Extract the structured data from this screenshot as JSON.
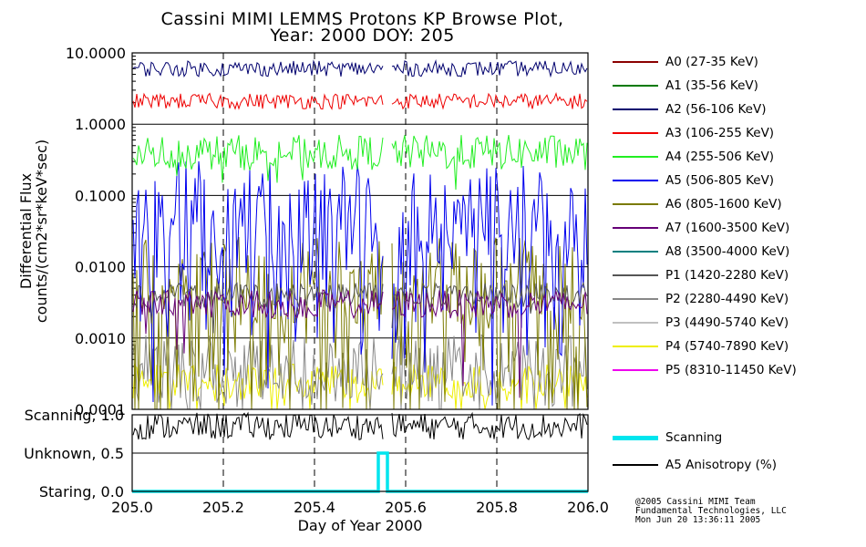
{
  "title_line1": "Cassini MIMI LEMMS Protons KP Browse Plot,",
  "title_line2": "Year: 2000 DOY: 205",
  "footer": {
    "line1": "@2005 Cassini MIMI Team",
    "line2": "Fundamental Technologies, LLC",
    "line3": "Mon Jun 20 13:36:11 2005"
  },
  "chart_data": [
    {
      "type": "line",
      "panel": "flux",
      "ylabel_line1": "Differential Flux",
      "ylabel_line2": "counts/(cm2*sr*keV*sec)",
      "yscale": "log",
      "ylim": [
        0.0001,
        10.0
      ],
      "yticks": [
        "10.0000",
        "1.0000",
        "0.1000",
        "0.0100",
        "0.0010",
        "0.0001"
      ],
      "xlim": [
        205.0,
        206.0
      ],
      "data_gap": [
        205.55,
        205.57
      ],
      "grid": true,
      "legend_position": "right",
      "series": [
        {
          "name": "A0 (27-35 KeV)",
          "color": "#8b0000",
          "level": null
        },
        {
          "name": "A1 (35-56 KeV)",
          "color": "#007a00",
          "level": null
        },
        {
          "name": "A2 (56-106 KeV)",
          "color": "#00006e",
          "level": 6.0
        },
        {
          "name": "A3 (106-255 KeV)",
          "color": "#ee0000",
          "level": 2.1
        },
        {
          "name": "A4 (255-506 KeV)",
          "color": "#22ee22",
          "level": 0.4
        },
        {
          "name": "A5 (506-805 KeV)",
          "color": "#0000ee",
          "level": 0.05
        },
        {
          "name": "A6 (805-1600 KeV)",
          "color": "#7a7a00",
          "level": 0.006
        },
        {
          "name": "A7 (1600-3500 KeV)",
          "color": "#660077",
          "level": 0.003
        },
        {
          "name": "A8 (3500-4000 KeV)",
          "color": "#008080",
          "level": null
        },
        {
          "name": "P1 (1420-2280 KeV)",
          "color": "#555555",
          "level": 0.004
        },
        {
          "name": "P2 (2280-4490 KeV)",
          "color": "#888888",
          "level": 0.00035
        },
        {
          "name": "P3 (4490-5740 KeV)",
          "color": "#c0c0c0",
          "level": null
        },
        {
          "name": "P4 (5740-7890 KeV)",
          "color": "#eeee00",
          "level": 0.00025
        },
        {
          "name": "P5 (8310-11450 KeV)",
          "color": "#ee00ee",
          "level": null
        }
      ]
    },
    {
      "type": "line",
      "panel": "mode",
      "ytick_labels": [
        "Scanning, 1.0",
        "Unknown, 0.5",
        "Staring, 0.0"
      ],
      "ylim": [
        0.0,
        1.0
      ],
      "xlabel": "Day of Year 2000",
      "xlim": [
        205.0,
        206.0
      ],
      "xticks": [
        "205.0",
        "205.2",
        "205.4",
        "205.6",
        "205.8",
        "206.0"
      ],
      "data_gap": [
        205.55,
        205.57
      ],
      "series": [
        {
          "name": "Scanning",
          "color": "#00e5ee",
          "x": [
            205.0,
            205.54,
            205.54,
            205.56,
            205.56,
            206.0
          ],
          "values": [
            0.0,
            0.0,
            0.5,
            0.5,
            0.0,
            0.0
          ]
        },
        {
          "name": "A5 Anisotropy (%)",
          "color": "#000000",
          "level": 0.85
        }
      ]
    }
  ]
}
